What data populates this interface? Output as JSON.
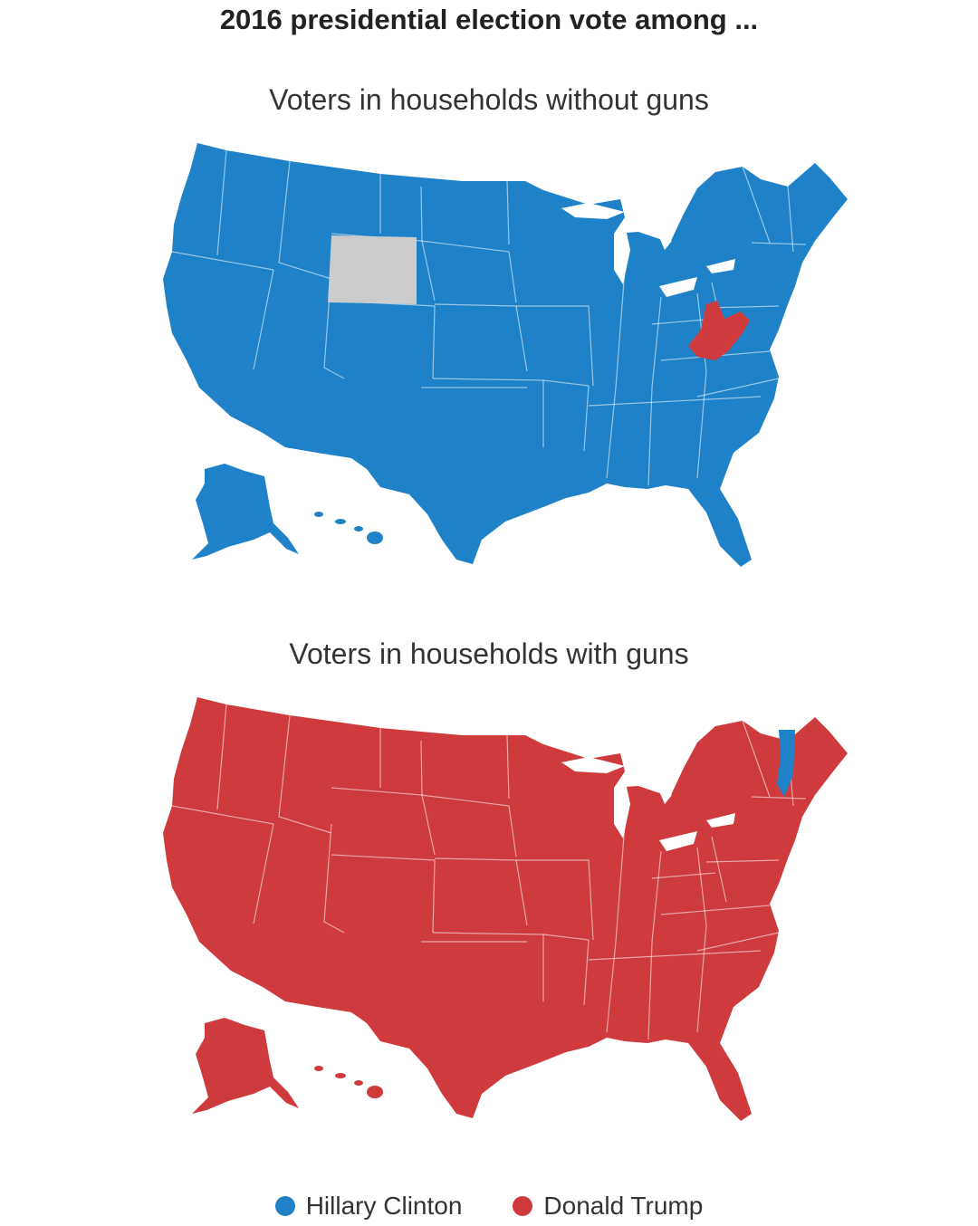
{
  "headline": "2016 presidential election vote among ...",
  "maps": [
    {
      "subtitle": "Voters in households without guns",
      "base_winner": "Hillary Clinton",
      "exceptions": [
        {
          "state": "Wyoming",
          "result": "No data"
        },
        {
          "state": "West Virginia",
          "result": "Donald Trump"
        }
      ]
    },
    {
      "subtitle": "Voters in households with guns",
      "base_winner": "Donald Trump",
      "exceptions": [
        {
          "state": "Vermont",
          "result": "Hillary Clinton"
        }
      ]
    }
  ],
  "legend": [
    {
      "label": "Hillary Clinton",
      "color": "#1f82c8"
    },
    {
      "label": "Donald Trump",
      "color": "#cf3a3c"
    }
  ],
  "colors": {
    "clinton": "#1f82c8",
    "trump": "#cf3a3c",
    "no_data": "#cccccc",
    "borders": "#ffffff"
  }
}
